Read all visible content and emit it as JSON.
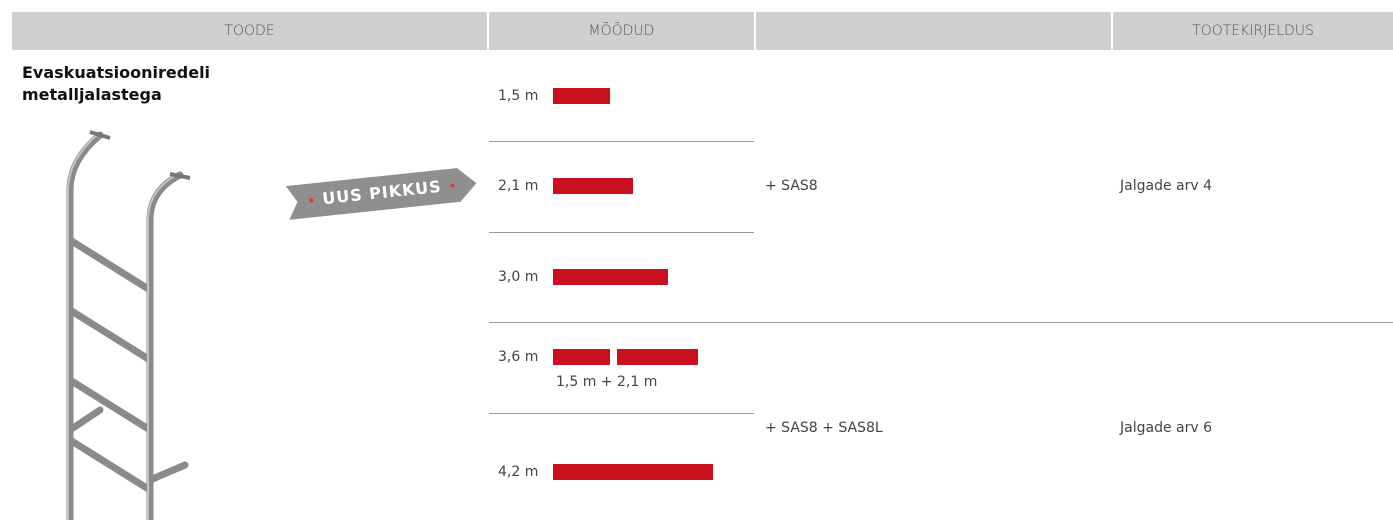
{
  "header": {
    "product": "TOODE",
    "dimensions": "MÕÕDUD",
    "description": "TOOTEKIRJELDUS"
  },
  "product": {
    "name": "Evaskuatsiooniredeli metalljalastega",
    "badge": "UUS PIKKUS"
  },
  "groups": [
    {
      "accessory": "+ SAS8",
      "description": "Jalgade arv 4",
      "sizes": [
        {
          "label": "1,5 m",
          "bars": [
            1.5
          ]
        },
        {
          "label": "2,1 m",
          "bars": [
            2.1
          ]
        },
        {
          "label": "3,0 m",
          "bars": [
            3.0
          ]
        }
      ]
    },
    {
      "accessory": "+ SAS8 + SAS8L",
      "description": "Jalgade arv 6",
      "sizes": [
        {
          "label": "3,6 m",
          "bars": [
            1.5,
            2.1
          ],
          "note": "1,5 m + 2,1 m"
        },
        {
          "label": "4,2 m",
          "bars": [
            4.2
          ]
        }
      ]
    }
  ]
}
